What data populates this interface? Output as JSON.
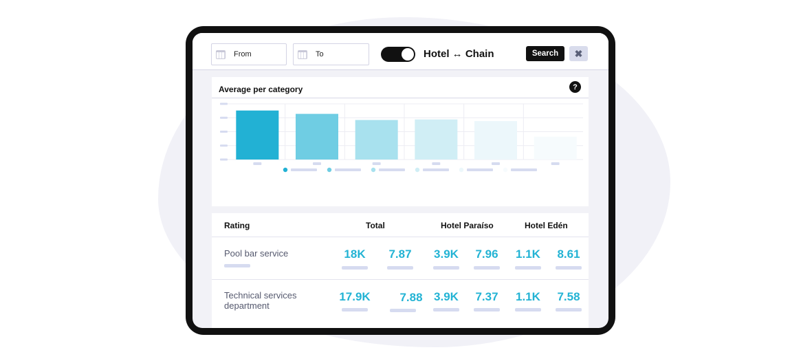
{
  "filters": {
    "from_label": "From",
    "to_label": "To",
    "toggle_label": "Hotel ↔ Chain",
    "toggle_on": true,
    "search_label": "Search",
    "close_label": "✖"
  },
  "chart_card": {
    "title": "Average per category",
    "help_label": "?"
  },
  "chart_data": {
    "type": "bar",
    "categories": [
      "",
      "",
      "",
      "",
      "",
      ""
    ],
    "values": [
      88,
      82,
      71,
      72,
      69,
      41
    ],
    "ylim": [
      0,
      100
    ],
    "colors": [
      "#22b1d4",
      "#6fcde3",
      "#a8e1ee",
      "#d0eef5",
      "#ecf7fb",
      "#f6fbfd"
    ],
    "legend_dot_colors": [
      "#22b1d4",
      "#6fcde3",
      "#a8e1ee",
      "#d0eef5",
      "#ecf7fb",
      "#f6fbfd"
    ],
    "grid": true,
    "legend_placement": "bottom"
  },
  "table": {
    "headers": {
      "rating": "Rating",
      "total": "Total",
      "hotel1": "Hotel Paraíso",
      "hotel2": "Hotel Edén"
    },
    "rows": [
      {
        "label": "Pool bar service",
        "total_count": "18K",
        "total_avg": "7.87",
        "h1_count": "3.9K",
        "h1_avg": "7.96",
        "h2_count": "1.1K",
        "h2_avg": "8.61"
      },
      {
        "label": "Technical services department",
        "total_count": "17.9K",
        "total_avg": "7.88",
        "h1_count": "3.9K",
        "h1_avg": "7.37",
        "h2_count": "1.1K",
        "h2_avg": "7.58"
      }
    ]
  }
}
